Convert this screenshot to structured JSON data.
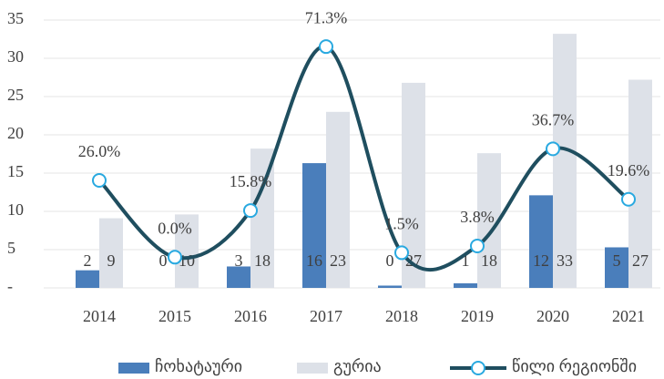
{
  "chart_data": {
    "type": "bar_line",
    "categories": [
      "2014",
      "2015",
      "2016",
      "2017",
      "2018",
      "2019",
      "2020",
      "2021"
    ],
    "series": [
      {
        "name": "ჩოხატაური",
        "type": "bar",
        "color": "#4a7ebb",
        "values": [
          2.3,
          0,
          2.8,
          16.3,
          0.3,
          0.6,
          12.1,
          5.3
        ],
        "value_labels": [
          "2",
          "0",
          "3",
          "16",
          "0",
          "1",
          "12",
          "5"
        ]
      },
      {
        "name": "გურია",
        "type": "bar",
        "color": "#dde1e8",
        "values": [
          9.1,
          9.6,
          18.2,
          23,
          26.8,
          17.6,
          33.2,
          27.2
        ],
        "value_labels": [
          "9",
          "10",
          "18",
          "23",
          "27",
          "18",
          "33",
          "27"
        ]
      },
      {
        "name": "წილი რეგიონში",
        "type": "line",
        "axis": "y2",
        "color": "#1f4e5f",
        "marker_color": "#29a9e0",
        "values": [
          26.0,
          0.0,
          15.8,
          71.3,
          1.5,
          3.8,
          36.7,
          19.6
        ],
        "value_labels": [
          "26.0%",
          "0.0%",
          "15.8%",
          "71.3%",
          "1.5%",
          "3.8%",
          "36.7%",
          "19.6%"
        ]
      }
    ],
    "ylim": [
      0,
      35
    ],
    "yticks": [
      {
        "value": 0,
        "label": "-"
      },
      5,
      10,
      15,
      20,
      25,
      30,
      35
    ],
    "y2lim": [
      -10.4,
      80.3
    ],
    "grid": true,
    "legend": "bottom"
  }
}
